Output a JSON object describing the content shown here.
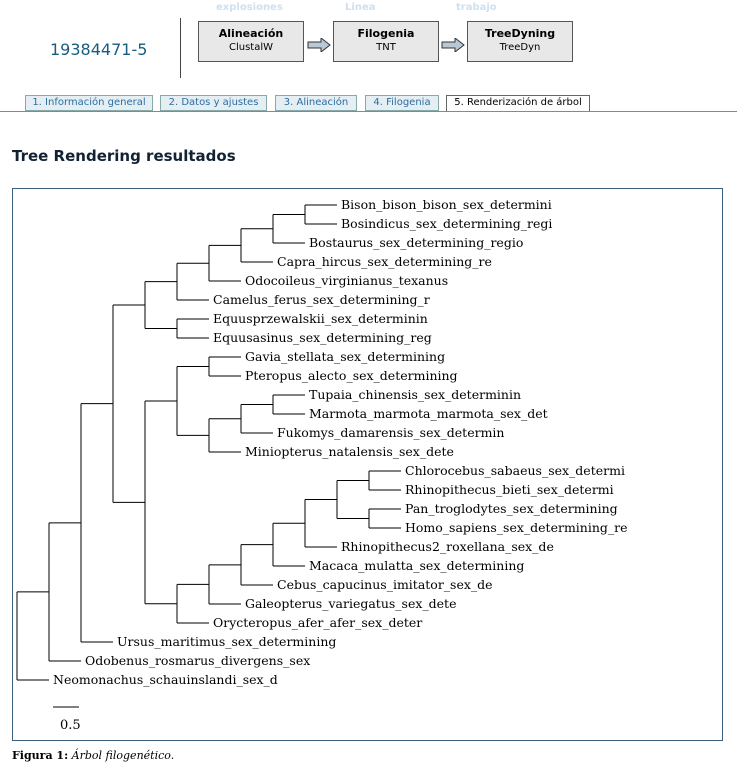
{
  "header": {
    "job_id": "19384471-5",
    "faint_labels": [
      "explosiones",
      "Linea",
      "trabajo"
    ],
    "pipeline": [
      {
        "title": "Alineación",
        "tool": "ClustalW"
      },
      {
        "title": "Filogenia",
        "tool": "TNT"
      },
      {
        "title": "TreeDyning",
        "tool": "TreeDyn"
      }
    ]
  },
  "tabs": [
    {
      "label": "1. Información general",
      "active": false
    },
    {
      "label": "2. Datos y ajustes",
      "active": false
    },
    {
      "label": "3. Alineación",
      "active": false
    },
    {
      "label": "4. Filogenia",
      "active": false
    },
    {
      "label": "5. Renderización de árbol",
      "active": true
    }
  ],
  "section_title": "Tree Rendering resultados",
  "tree": {
    "leaves": [
      "Bison_bison_bison_sex_determini",
      "Bosindicus_sex_determining_regi",
      "Bostaurus_sex_determining_regio",
      "Capra_hircus_sex_determining_re",
      "Odocoileus_virginianus_texanus",
      "Camelus_ferus_sex_determining_r",
      "Equusprzewalskii_sex_determinin",
      "Equusasinus_sex_determining_reg",
      "Gavia_stellata_sex_determining",
      "Pteropus_alecto_sex_determining",
      "Tupaia_chinensis_sex_determinin",
      "Marmota_marmota_marmota_sex_det",
      "Fukomys_damarensis_sex_determin",
      "Miniopterus_natalensis_sex_dete",
      "Chlorocebus_sabaeus_sex_determi",
      "Rhinopithecus_bieti_sex_determi",
      "Pan_troglodytes_sex_determining",
      "Homo_sapiens_sex_determining_re",
      "Rhinopithecus2_roxellana_sex_de",
      "Macaca_mulatta_sex_determining",
      "Cebus_capucinus_imitator_sex_de",
      "Galeopterus_variegatus_sex_dete",
      "Orycteropus_afer_afer_sex_deter",
      "Ursus_maritimus_sex_determining",
      "Odobenus_rosmarus_divergens_sex",
      "Neomonachus_schauinslandi_sex_d"
    ],
    "scale_label": "0.5"
  },
  "caption": {
    "label": "Figura 1:",
    "text": "Árbol filogenético."
  }
}
